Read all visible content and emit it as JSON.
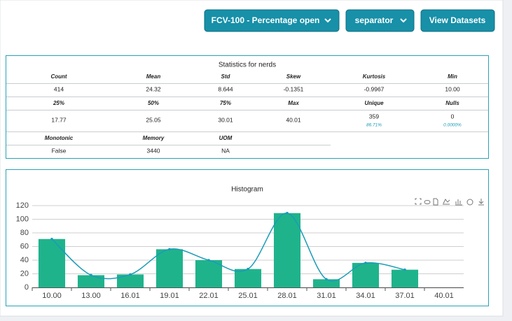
{
  "buttons": [
    "FCV-100 - Percentage open",
    "separator",
    "View Datasets"
  ],
  "stats": {
    "title": "Statistics for nerds",
    "sections": [
      {
        "headers": [
          "Count",
          "Mean",
          "Std",
          "Skew",
          "Kurtosis",
          "Min"
        ],
        "values": [
          "414",
          "24.32",
          "8.644",
          "-0.1351",
          "-0.9967",
          "10.00"
        ]
      },
      {
        "headers": [
          "25%",
          "50%",
          "75%",
          "Max",
          "Unique",
          "Nulls"
        ],
        "values": [
          "17.77",
          "25.05",
          "30.01",
          "40.01",
          {
            "value": "359",
            "note": "86.71%"
          },
          {
            "value": "0",
            "note": "0.0000%"
          }
        ]
      },
      {
        "headers": [
          "Monotonic",
          "Memory",
          "UOM"
        ],
        "values": [
          "False",
          "3440",
          "NA"
        ]
      }
    ]
  },
  "chart_data": {
    "type": "bar",
    "title": "Histogram",
    "categories": [
      "10.00",
      "13.00",
      "16.01",
      "19.01",
      "22.01",
      "25.01",
      "28.01",
      "31.01",
      "34.01",
      "37.01",
      "40.01"
    ],
    "values": [
      71,
      18,
      19,
      56,
      40,
      27,
      109,
      12,
      36,
      26,
      null
    ],
    "color": "#1fb38c",
    "line_color": "#1a9cb8",
    "smooth_line": true,
    "ylim": [
      0,
      120
    ],
    "yticks": [
      0,
      20,
      40,
      60,
      80,
      100,
      120
    ],
    "grid": true
  }
}
